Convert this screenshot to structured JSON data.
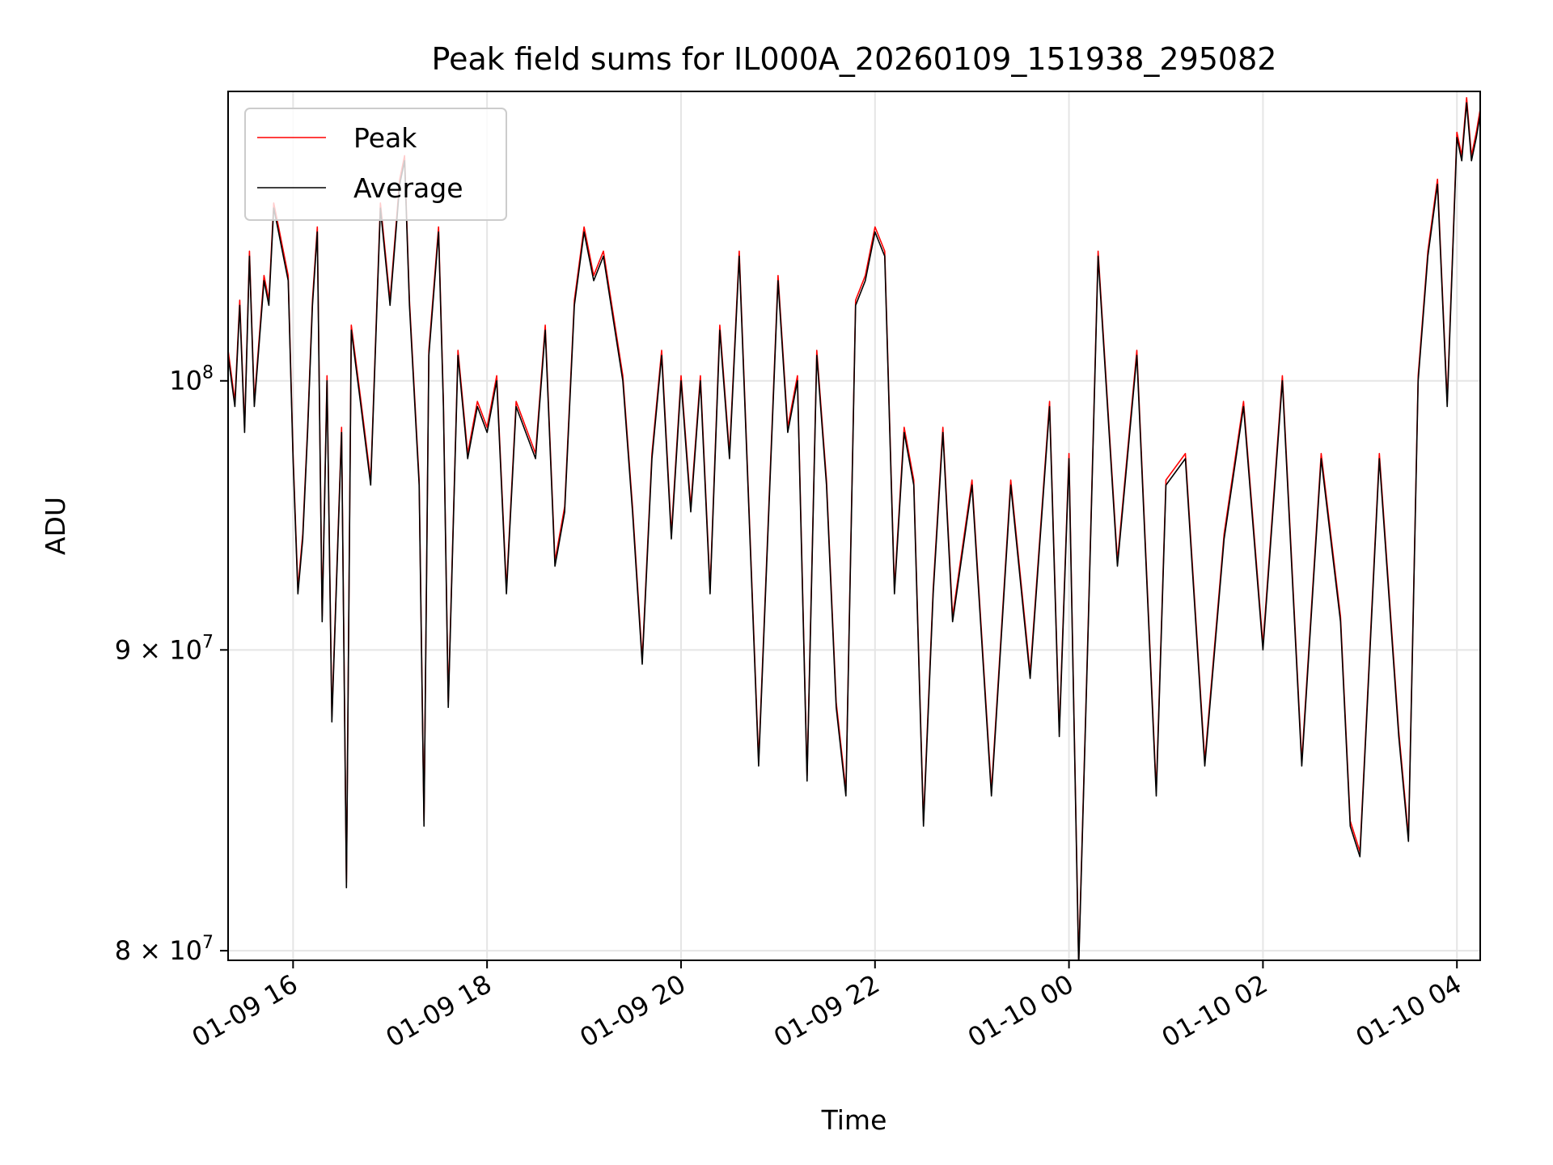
{
  "chart_data": {
    "type": "line",
    "title": "Peak field sums for IL000A_20260109_151938_295082",
    "xlabel": "Time",
    "ylabel": "ADU",
    "yscale": "log",
    "ylim": [
      79700000,
      112000000
    ],
    "xlim_hours": [
      -0.67,
      12.24
    ],
    "grid": true,
    "legend_position": "upper-left",
    "x_ticks": [
      {
        "hour": 0,
        "label": "01-09 16"
      },
      {
        "hour": 2,
        "label": "01-09 18"
      },
      {
        "hour": 4,
        "label": "01-09 20"
      },
      {
        "hour": 6,
        "label": "01-09 22"
      },
      {
        "hour": 8,
        "label": "01-10 00"
      },
      {
        "hour": 10,
        "label": "01-10 02"
      },
      {
        "hour": 12,
        "label": "01-10 04"
      }
    ],
    "y_ticks": [
      {
        "value": 100000000,
        "base": "10",
        "exp": "8"
      },
      {
        "value": 90000000,
        "base": "9 × 10",
        "exp": "7"
      },
      {
        "value": 80000000,
        "base": "8 × 10",
        "exp": "7"
      }
    ],
    "series": [
      {
        "name": "Peak",
        "color": "#ff0000",
        "offset_factor": 1.002
      },
      {
        "name": "Average",
        "color": "#000000",
        "offset_factor": 1.0
      }
    ],
    "x_hours": [
      -0.67,
      -0.6,
      -0.55,
      -0.5,
      -0.45,
      -0.4,
      -0.3,
      -0.25,
      -0.2,
      -0.15,
      -0.1,
      -0.05,
      0.0,
      0.05,
      0.1,
      0.15,
      0.2,
      0.25,
      0.3,
      0.35,
      0.4,
      0.5,
      0.55,
      0.6,
      0.7,
      0.8,
      0.9,
      1.0,
      1.1,
      1.15,
      1.2,
      1.3,
      1.35,
      1.4,
      1.5,
      1.55,
      1.6,
      1.7,
      1.8,
      1.9,
      2.0,
      2.1,
      2.2,
      2.3,
      2.5,
      2.6,
      2.7,
      2.8,
      2.9,
      3.0,
      3.1,
      3.2,
      3.4,
      3.5,
      3.6,
      3.7,
      3.8,
      3.9,
      4.0,
      4.1,
      4.2,
      4.3,
      4.4,
      4.5,
      4.6,
      4.8,
      5.0,
      5.1,
      5.2,
      5.3,
      5.4,
      5.5,
      5.6,
      5.7,
      5.8,
      5.9,
      6.0,
      6.1,
      6.2,
      6.3,
      6.4,
      6.5,
      6.6,
      6.7,
      6.8,
      7.0,
      7.2,
      7.4,
      7.6,
      7.8,
      7.9,
      8.0,
      8.1,
      8.2,
      8.3,
      8.5,
      8.7,
      8.9,
      9.0,
      9.2,
      9.4,
      9.6,
      9.8,
      10.0,
      10.2,
      10.4,
      10.6,
      10.8,
      10.9,
      11.0,
      11.2,
      11.4,
      11.5,
      11.6,
      11.7,
      11.8,
      11.9,
      12.0,
      12.05,
      12.1,
      12.15,
      12.2,
      12.24
    ],
    "y_values": [
      101000000,
      99000000,
      103000000,
      98000000,
      105000000,
      99000000,
      104000000,
      103000000,
      107000000,
      106000000,
      105000000,
      104000000,
      97000000,
      92000000,
      94000000,
      98000000,
      103000000,
      106000000,
      91000000,
      100000000,
      87500000,
      98000000,
      82000000,
      102000000,
      99000000,
      96000000,
      107000000,
      103000000,
      108000000,
      109000000,
      103000000,
      96000000,
      84000000,
      101000000,
      106000000,
      99000000,
      88000000,
      101000000,
      97000000,
      99000000,
      98000000,
      100000000,
      92000000,
      99000000,
      97000000,
      102000000,
      93000000,
      95000000,
      103000000,
      106000000,
      104000000,
      105000000,
      100000000,
      95000000,
      89500000,
      97000000,
      101000000,
      94000000,
      100000000,
      95000000,
      100000000,
      92000000,
      102000000,
      97000000,
      105000000,
      86000000,
      104000000,
      98000000,
      100000000,
      85500000,
      101000000,
      96000000,
      88000000,
      85000000,
      103000000,
      104000000,
      106000000,
      105000000,
      92000000,
      98000000,
      96000000,
      84000000,
      92000000,
      98000000,
      91000000,
      96000000,
      85000000,
      96000000,
      89000000,
      99000000,
      87000000,
      97000000,
      79500000,
      91000000,
      105000000,
      93000000,
      101000000,
      85000000,
      96000000,
      97000000,
      86000000,
      94000000,
      99000000,
      90000000,
      100000000,
      86000000,
      97000000,
      91000000,
      84000000,
      83000000,
      97000000,
      87000000,
      83500000,
      100000000,
      105000000,
      108000000,
      99000000,
      110000000,
      109000000,
      111500000,
      109000000,
      110000000,
      111000000
    ]
  },
  "legend": {
    "peak_label": "Peak",
    "average_label": "Average"
  }
}
